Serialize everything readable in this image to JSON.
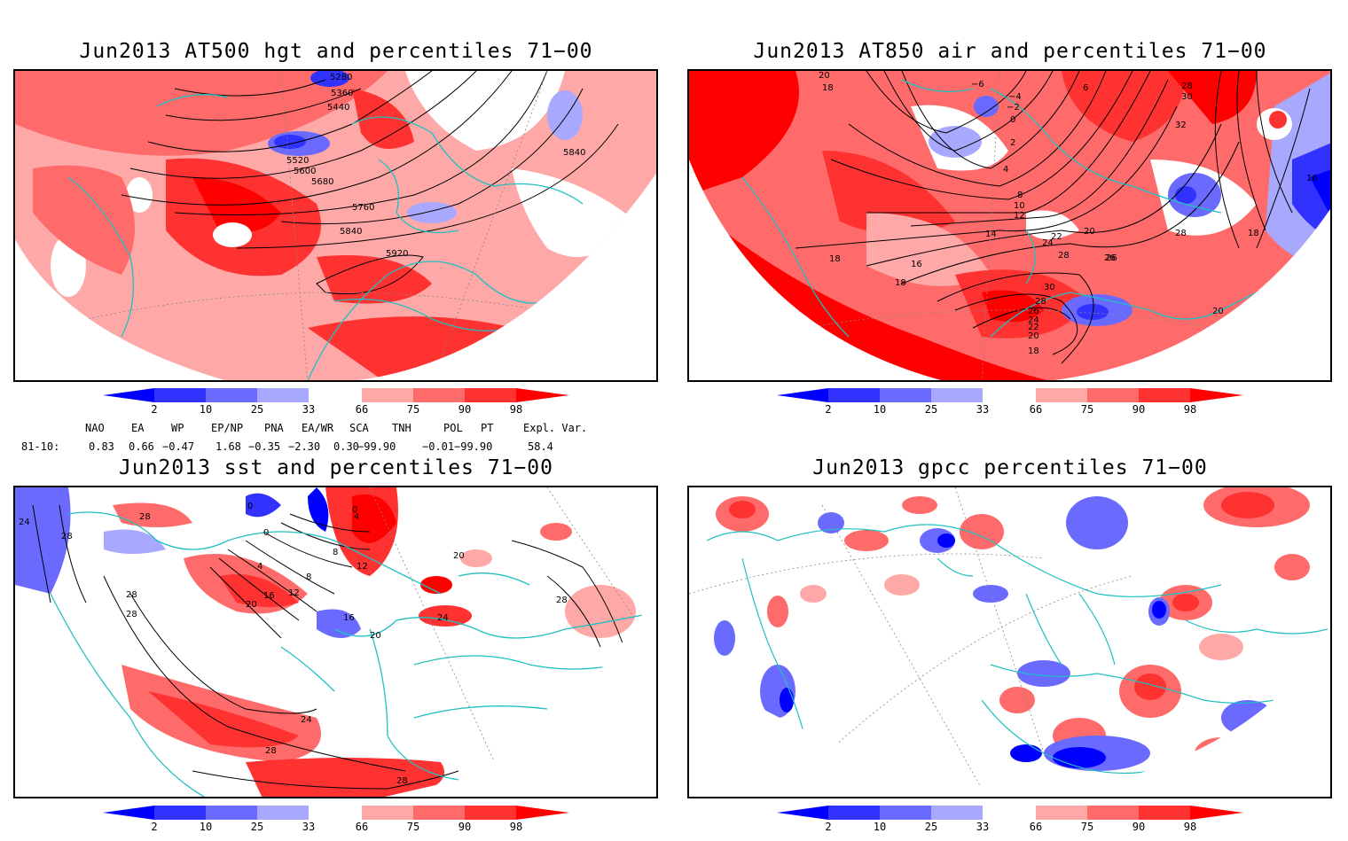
{
  "panels": [
    {
      "title": "Jun2013 AT500 hgt and percentiles 71−00",
      "contour_labels": [
        "5280",
        "5360",
        "5440",
        "5520",
        "5600",
        "5680",
        "5760",
        "5840",
        "5920",
        "5840"
      ]
    },
    {
      "title": "Jun2013 AT850 air and percentiles 71−00",
      "contour_labels": [
        "20",
        "18",
        "−6",
        "−4",
        "−2",
        "0",
        "2",
        "4",
        "6",
        "8",
        "10",
        "12",
        "14",
        "16",
        "18",
        "18",
        "20",
        "22",
        "24",
        "26",
        "28",
        "30",
        "28",
        "26",
        "24",
        "22",
        "20",
        "18",
        "30",
        "28",
        "32",
        "16",
        "18",
        "20",
        "26",
        "28"
      ]
    },
    {
      "title": "Jun2013 sst and percentiles 71−00",
      "contour_labels": [
        "24",
        "28",
        "28",
        "28",
        "28",
        "0",
        "0",
        "4",
        "8",
        "12",
        "12",
        "16",
        "20",
        "16",
        "20",
        "24",
        "24",
        "28",
        "28",
        "20",
        "28",
        "4",
        "8",
        "0"
      ]
    },
    {
      "title": "Jun2013 gpcc percentiles 71−00",
      "contour_labels": []
    }
  ],
  "colorbar": {
    "labels": [
      "2",
      "10",
      "25",
      "33",
      "66",
      "75",
      "90",
      "98"
    ],
    "colors": [
      "#0000ff",
      "#3232ff",
      "#6a6aff",
      "#a8a8ff",
      "#ffffff",
      "#ffa8a8",
      "#ff6a6a",
      "#ff3232",
      "#ff0000"
    ]
  },
  "indices": {
    "header": [
      "NAO",
      "EA",
      "WP",
      "EP/NP",
      "PNA",
      "EA/WR",
      "SCA",
      "TNH",
      "POL",
      "PT",
      "Expl. Var."
    ],
    "row_label": "81-10:",
    "values": [
      "0.83",
      "0.66",
      "−0.47",
      "1.68",
      "−0.35",
      "−2.30",
      "0.30",
      "−99.90",
      "−0.01",
      "−99.90",
      "58.4"
    ]
  }
}
